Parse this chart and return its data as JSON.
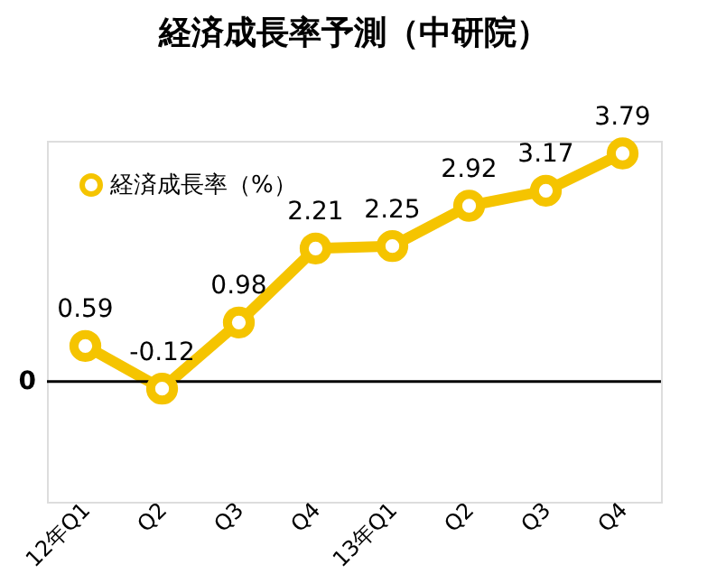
{
  "chart_data": {
    "type": "line",
    "title": "経済成長率予測（中研院）",
    "categories": [
      "12年Q1",
      "Q2",
      "Q3",
      "Q4",
      "13年Q1",
      "Q2",
      "Q3",
      "Q4"
    ],
    "series": [
      {
        "name": "経済成長率（%）",
        "color": "#f5c400",
        "values": [
          0.59,
          -0.12,
          0.98,
          2.21,
          2.25,
          2.92,
          3.17,
          3.79
        ]
      }
    ],
    "ylim": [
      -2,
      4
    ],
    "annotations": [
      "0"
    ],
    "ref_lines": [
      {
        "axis": "y",
        "value": 0,
        "color": "#000000"
      }
    ],
    "legend": "top left",
    "marker": "circle",
    "line_style": "solid",
    "data_labels": true
  }
}
